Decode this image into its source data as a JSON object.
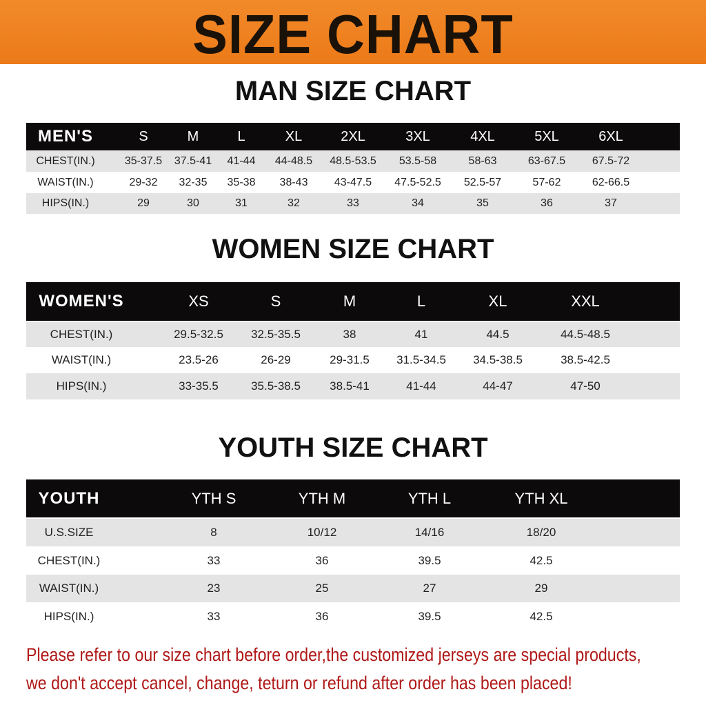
{
  "title": "SIZE CHART",
  "men": {
    "heading": "MAN SIZE CHART",
    "header": [
      "MEN'S",
      "S",
      "M",
      "L",
      "XL",
      "2XL",
      "3XL",
      "4XL",
      "5XL",
      "6XL"
    ],
    "rows": [
      [
        "CHEST(IN.)",
        "35-37.5",
        "37.5-41",
        "41-44",
        "44-48.5",
        "48.5-53.5",
        "53.5-58",
        "58-63",
        "63-67.5",
        "67.5-72"
      ],
      [
        "WAIST(IN.)",
        "29-32",
        "32-35",
        "35-38",
        "38-43",
        "43-47.5",
        "47.5-52.5",
        "52.5-57",
        "57-62",
        "62-66.5"
      ],
      [
        "HIPS(IN.)",
        "29",
        "30",
        "31",
        "32",
        "33",
        "34",
        "35",
        "36",
        "37"
      ]
    ]
  },
  "women": {
    "heading": "WOMEN SIZE CHART",
    "header": [
      "WOMEN'S",
      "XS",
      "S",
      "M",
      "L",
      "XL",
      "XXL"
    ],
    "rows": [
      [
        "CHEST(IN.)",
        "29.5-32.5",
        "32.5-35.5",
        "38",
        "41",
        "44.5",
        "44.5-48.5"
      ],
      [
        "WAIST(IN.)",
        "23.5-26",
        "26-29",
        "29-31.5",
        "31.5-34.5",
        "34.5-38.5",
        "38.5-42.5"
      ],
      [
        "HIPS(IN.)",
        "33-35.5",
        "35.5-38.5",
        "38.5-41",
        "41-44",
        "44-47",
        "47-50"
      ]
    ]
  },
  "youth": {
    "heading": "YOUTH SIZE CHART",
    "header": [
      "YOUTH",
      "YTH S",
      "YTH M",
      "YTH L",
      "YTH XL"
    ],
    "rows": [
      [
        "U.S.SIZE",
        "8",
        "10/12",
        "14/16",
        "18/20"
      ],
      [
        "CHEST(IN.)",
        "33",
        "36",
        "39.5",
        "42.5"
      ],
      [
        "WAIST(IN.)",
        "23",
        "25",
        "27",
        "29"
      ],
      [
        "HIPS(IN.)",
        "33",
        "36",
        "39.5",
        "42.5"
      ]
    ]
  },
  "notice": [
    "Please refer to our size chart before order,the customized jerseys are special products,",
    "we don't accept cancel, change, teturn or refund after order has been placed!"
  ],
  "colors": {
    "banner": "#ee8020",
    "header": "#0c0a0a",
    "stripe": "#e4e4e4",
    "notice": "#b01818"
  }
}
